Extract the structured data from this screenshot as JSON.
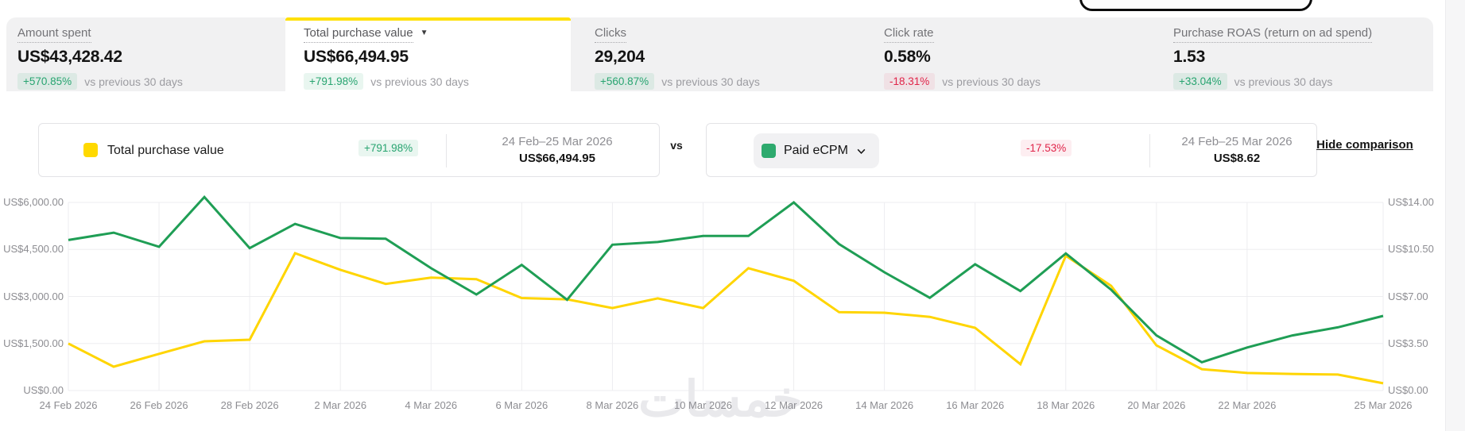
{
  "metrics_tabs": [
    {
      "label": "Amount spent",
      "value": "US$43,428.42",
      "change": "+570.85%",
      "change_dir": "up",
      "compare": "vs previous 30 days"
    },
    {
      "label": "Total purchase value",
      "value": "US$66,494.95",
      "change": "+791.98%",
      "change_dir": "up",
      "compare": "vs previous 30 days",
      "dropdown_caret": "▼"
    },
    {
      "label": "Clicks",
      "value": "29,204",
      "change": "+560.87%",
      "change_dir": "up",
      "compare": "vs previous 30 days"
    },
    {
      "label": "Click rate",
      "value": "0.58%",
      "change": "-18.31%",
      "change_dir": "down",
      "compare": "vs previous 30 days"
    },
    {
      "label": "Purchase ROAS (return on ad spend)",
      "value": "1.53",
      "change": "+33.04%",
      "change_dir": "up",
      "compare": "vs previous 30 days"
    }
  ],
  "comparison": {
    "primary": {
      "name": "Total purchase value",
      "swatch_color": "#ffd900",
      "change": "+791.98%",
      "change_dir": "up",
      "date_range": "24 Feb–25 Mar 2026",
      "value": "US$66,494.95"
    },
    "vs_label": "vs",
    "secondary": {
      "name": "Paid eCPM",
      "swatch_color": "#2eaa6e",
      "change": "-17.53%",
      "change_dir": "down",
      "date_range": "24 Feb–25 Mar 2026",
      "value": "US$8.62"
    },
    "hide_comparison_label": "Hide comparison"
  },
  "chart_data": {
    "type": "line",
    "x_labels": [
      "24 Feb 2026",
      "26 Feb 2026",
      "28 Feb 2026",
      "2 Mar 2026",
      "4 Mar 2026",
      "6 Mar 2026",
      "8 Mar 2026",
      "10 Mar 2026",
      "12 Mar 2026",
      "14 Mar 2026",
      "16 Mar 2026",
      "18 Mar 2026",
      "20 Mar 2026",
      "22 Mar 2026",
      "25 Mar 2026"
    ],
    "x_tick_days": [
      0,
      2,
      4,
      6,
      8,
      10,
      12,
      14,
      16,
      18,
      20,
      22,
      24,
      26,
      29
    ],
    "days_total": 29,
    "left_axis": {
      "ticks": [
        "US$6,000.00",
        "US$4,500.00",
        "US$3,000.00",
        "US$1,500.00",
        "US$0.00"
      ],
      "min": 0,
      "max": 6000
    },
    "right_axis": {
      "ticks": [
        "US$14.00",
        "US$10.50",
        "US$7.00",
        "US$3.50",
        "US$0.00"
      ],
      "min": 0,
      "max": 14
    },
    "grid": true,
    "legend_position": "top",
    "series": [
      {
        "name": "Total purchase value",
        "axis": "left",
        "color": "#ffd500",
        "values": [
          1500,
          760,
          1170,
          1570,
          1620,
          4380,
          3850,
          3400,
          3600,
          3550,
          2950,
          2910,
          2630,
          2940,
          2630,
          3900,
          3500,
          2500,
          2480,
          2350,
          2000,
          840,
          4300,
          3340,
          1440,
          680,
          560,
          530,
          510,
          230
        ]
      },
      {
        "name": "Paid eCPM",
        "axis": "right",
        "color": "#1f9e55",
        "values": [
          11.2,
          11.75,
          10.7,
          14.4,
          10.6,
          12.4,
          11.35,
          11.3,
          9.1,
          7.15,
          9.35,
          6.75,
          10.85,
          11.05,
          11.5,
          11.5,
          14.0,
          10.9,
          8.8,
          6.9,
          9.4,
          7.4,
          10.2,
          7.5,
          4.1,
          2.1,
          3.2,
          4.1,
          4.7,
          5.55
        ]
      }
    ]
  },
  "watermark": "خمسات"
}
